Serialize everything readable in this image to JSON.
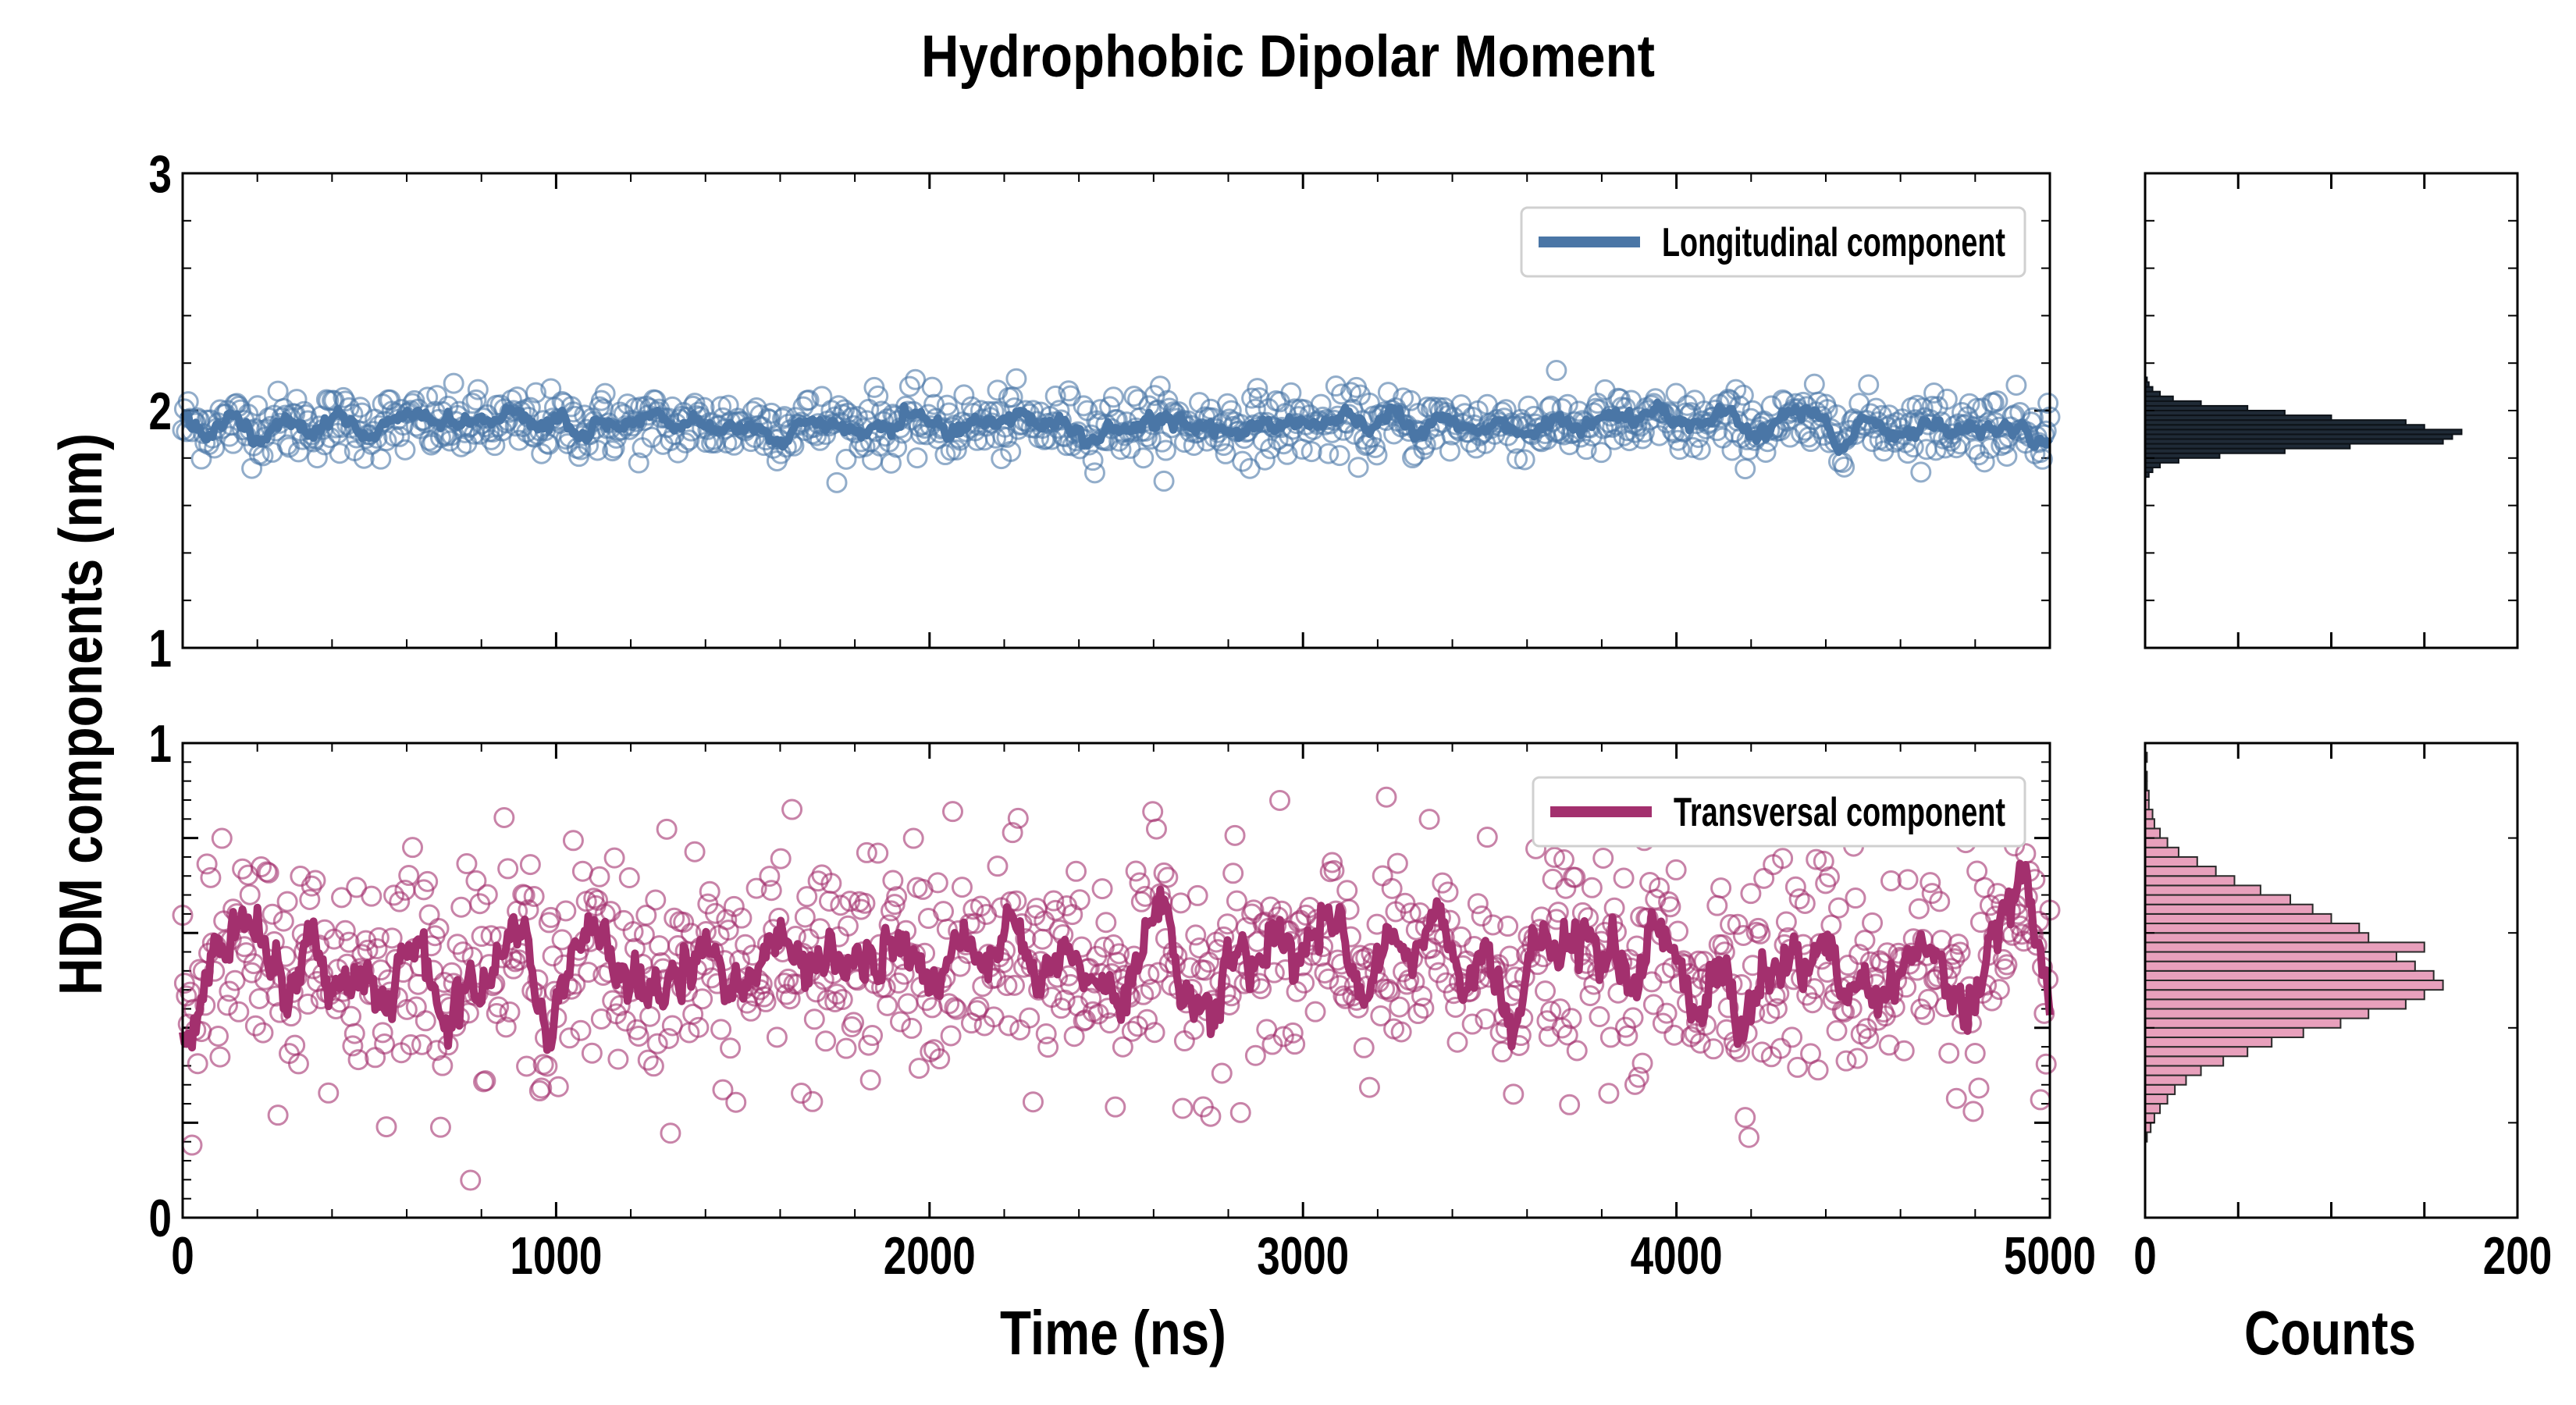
{
  "title": "Hydrophobic Dipolar Moment",
  "ylabel": "HDM components (nm)",
  "xlabel": "Time (ns)",
  "hist_xlabel": "Counts",
  "colors": {
    "longitudinal": "#4a76a6",
    "transversal": "#a3306e",
    "hist_top_fill": "#1f2a36",
    "hist_bottom_fill": "#e8a0bc"
  },
  "chart_data": [
    {
      "panel": "top-timeseries",
      "type": "scatter",
      "series": [
        {
          "name": "Longitudinal component",
          "mean": 1.94,
          "spread": 0.07,
          "smooth_spread": 0.025,
          "n_points": 1000
        }
      ],
      "xlim": [
        0,
        5000
      ],
      "ylim": [
        1,
        3
      ],
      "xticks": [
        0,
        1000,
        2000,
        3000,
        4000,
        5000
      ],
      "yticks": [
        1,
        2,
        3
      ],
      "legend": "top-right",
      "grid": false
    },
    {
      "panel": "bottom-timeseries",
      "type": "scatter",
      "series": [
        {
          "name": "Transversal component",
          "mean": 0.53,
          "spread": 0.12,
          "smooth_spread": 0.04,
          "n_points": 1000
        }
      ],
      "xlim": [
        0,
        5000
      ],
      "ylim": [
        0,
        1
      ],
      "xticks": [
        0,
        1000,
        2000,
        3000,
        4000,
        5000
      ],
      "yticks": [
        0,
        1
      ],
      "legend": "top-right",
      "grid": false
    },
    {
      "panel": "top-histogram",
      "type": "bar",
      "orientation": "horizontal",
      "bins": [
        1.72,
        1.74,
        1.76,
        1.78,
        1.8,
        1.82,
        1.84,
        1.86,
        1.88,
        1.9,
        1.92,
        1.94,
        1.96,
        1.98,
        2.0,
        2.02,
        2.04,
        2.06,
        2.08,
        2.1,
        2.12
      ],
      "counts": [
        2,
        4,
        8,
        18,
        40,
        75,
        110,
        160,
        165,
        170,
        150,
        140,
        100,
        75,
        55,
        30,
        15,
        8,
        4,
        2,
        1
      ],
      "xlim": [
        0,
        200
      ],
      "ylim": [
        1,
        3
      ]
    },
    {
      "panel": "bottom-histogram",
      "type": "bar",
      "orientation": "horizontal",
      "bins": [
        0.16,
        0.18,
        0.2,
        0.22,
        0.24,
        0.26,
        0.28,
        0.3,
        0.32,
        0.34,
        0.36,
        0.38,
        0.4,
        0.42,
        0.44,
        0.46,
        0.48,
        0.5,
        0.52,
        0.54,
        0.56,
        0.58,
        0.6,
        0.62,
        0.64,
        0.66,
        0.68,
        0.7,
        0.72,
        0.74,
        0.76,
        0.78,
        0.8,
        0.82,
        0.84,
        0.86,
        0.88,
        0.9,
        0.92,
        0.94,
        0.96
      ],
      "counts": [
        1,
        3,
        5,
        8,
        12,
        16,
        22,
        30,
        42,
        55,
        68,
        85,
        105,
        120,
        140,
        150,
        160,
        155,
        145,
        135,
        150,
        120,
        115,
        100,
        90,
        78,
        62,
        48,
        38,
        28,
        18,
        12,
        8,
        5,
        4,
        2,
        2,
        1,
        1,
        0,
        1
      ],
      "xlim": [
        0,
        200
      ],
      "xticks": [
        0,
        200
      ],
      "ylim": [
        0,
        1
      ]
    }
  ]
}
